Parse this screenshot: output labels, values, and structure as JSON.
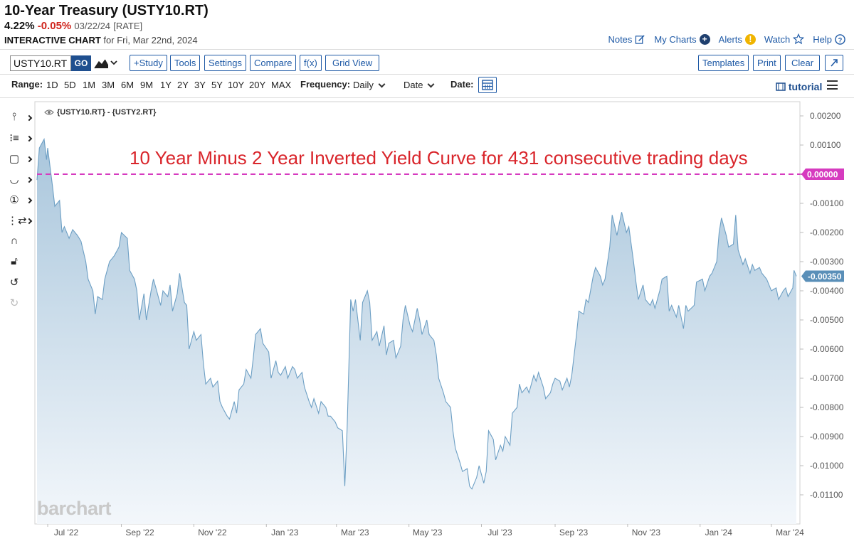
{
  "header": {
    "title": "10-Year Treasury (USTY10.RT)",
    "last": "4.22%",
    "change": "-0.05%",
    "date": "03/22/24",
    "tag": "[RATE]",
    "chart_label": "INTERACTIVE CHART",
    "for_text": "for Fri, Mar 22nd, 2024"
  },
  "top_links": {
    "notes": "Notes",
    "my_charts": "My Charts",
    "alerts": "Alerts",
    "watch": "Watch",
    "help": "Help"
  },
  "toolbar": {
    "symbol": "USTY10.RT",
    "go": "GO",
    "study": "+Study",
    "tools": "Tools",
    "settings": "Settings",
    "compare": "Compare",
    "fx": "f(x)",
    "grid_view": "Grid View",
    "templates": "Templates",
    "print": "Print",
    "clear": "Clear"
  },
  "range_bar": {
    "range_label": "Range:",
    "ranges": [
      "1D",
      "5D",
      "1M",
      "3M",
      "6M",
      "9M",
      "1Y",
      "2Y",
      "3Y",
      "5Y",
      "10Y",
      "20Y",
      "MAX"
    ],
    "frequency_label": "Frequency:",
    "frequency": "Daily",
    "axis_mode": "Date",
    "date_label": "Date:",
    "tutorial": "tutorial"
  },
  "colors": {
    "accent": "#1f5aa6",
    "line": "#6d9fc4",
    "fill_top": "#a9c6dc",
    "fill_bottom": "#f3f7fb",
    "zero_line": "#d63bbf",
    "annotation": "#d9252b",
    "last_badge": "#5a8fb8"
  },
  "chart_data": {
    "type": "area",
    "series": [
      {
        "name": "{USTY10.RT} - {USTY2.RT}",
        "points": [
          [
            "2022-06-22",
            -0.0002
          ],
          [
            "2022-06-24",
            0.0009
          ],
          [
            "2022-06-28",
            0.0012
          ],
          [
            "2022-06-30",
            0.0005
          ],
          [
            "2022-07-01",
            0.0009
          ],
          [
            "2022-07-05",
            -0.0004
          ],
          [
            "2022-07-07",
            -0.0011
          ],
          [
            "2022-07-11",
            -0.0009
          ],
          [
            "2022-07-13",
            -0.002
          ],
          [
            "2022-07-15",
            -0.0018
          ],
          [
            "2022-07-19",
            -0.0022
          ],
          [
            "2022-07-22",
            -0.0019
          ],
          [
            "2022-07-26",
            -0.0021
          ],
          [
            "2022-07-29",
            -0.0023
          ],
          [
            "2022-08-02",
            -0.003
          ],
          [
            "2022-08-04",
            -0.0036
          ],
          [
            "2022-08-08",
            -0.004
          ],
          [
            "2022-08-10",
            -0.0048
          ],
          [
            "2022-08-12",
            -0.0042
          ],
          [
            "2022-08-16",
            -0.0043
          ],
          [
            "2022-08-18",
            -0.0036
          ],
          [
            "2022-08-22",
            -0.003
          ],
          [
            "2022-08-26",
            -0.0028
          ],
          [
            "2022-08-30",
            -0.0025
          ],
          [
            "2022-09-01",
            -0.002
          ],
          [
            "2022-09-06",
            -0.0022
          ],
          [
            "2022-09-08",
            -0.0033
          ],
          [
            "2022-09-12",
            -0.0036
          ],
          [
            "2022-09-14",
            -0.004
          ],
          [
            "2022-09-16",
            -0.005
          ],
          [
            "2022-09-20",
            -0.0041
          ],
          [
            "2022-09-22",
            -0.005
          ],
          [
            "2022-09-26",
            -0.004
          ],
          [
            "2022-09-28",
            -0.0036
          ],
          [
            "2022-09-30",
            -0.0039
          ],
          [
            "2022-10-04",
            -0.0045
          ],
          [
            "2022-10-06",
            -0.004
          ],
          [
            "2022-10-10",
            -0.0042
          ],
          [
            "2022-10-12",
            -0.0038
          ],
          [
            "2022-10-14",
            -0.0047
          ],
          [
            "2022-10-18",
            -0.0041
          ],
          [
            "2022-10-20",
            -0.0034
          ],
          [
            "2022-10-24",
            -0.0044
          ],
          [
            "2022-10-26",
            -0.0045
          ],
          [
            "2022-10-28",
            -0.006
          ],
          [
            "2022-11-01",
            -0.0054
          ],
          [
            "2022-11-03",
            -0.0057
          ],
          [
            "2022-11-07",
            -0.0055
          ],
          [
            "2022-11-09",
            -0.0065
          ],
          [
            "2022-11-11",
            -0.0072
          ],
          [
            "2022-11-15",
            -0.007
          ],
          [
            "2022-11-17",
            -0.0073
          ],
          [
            "2022-11-21",
            -0.0071
          ],
          [
            "2022-11-23",
            -0.0078
          ],
          [
            "2022-11-25",
            -0.008
          ],
          [
            "2022-11-29",
            -0.0083
          ],
          [
            "2022-12-01",
            -0.0084
          ],
          [
            "2022-12-05",
            -0.0078
          ],
          [
            "2022-12-07",
            -0.0082
          ],
          [
            "2022-12-09",
            -0.0074
          ],
          [
            "2022-12-13",
            -0.0072
          ],
          [
            "2022-12-15",
            -0.0067
          ],
          [
            "2022-12-19",
            -0.007
          ],
          [
            "2022-12-21",
            -0.0063
          ],
          [
            "2022-12-23",
            -0.0055
          ],
          [
            "2022-12-27",
            -0.0053
          ],
          [
            "2022-12-29",
            -0.0058
          ],
          [
            "2023-01-03",
            -0.0061
          ],
          [
            "2023-01-05",
            -0.007
          ],
          [
            "2023-01-09",
            -0.0064
          ],
          [
            "2023-01-11",
            -0.0068
          ],
          [
            "2023-01-13",
            -0.0069
          ],
          [
            "2023-01-17",
            -0.0066
          ],
          [
            "2023-01-19",
            -0.007
          ],
          [
            "2023-01-23",
            -0.0066
          ],
          [
            "2023-01-25",
            -0.0067
          ],
          [
            "2023-01-27",
            -0.007
          ],
          [
            "2023-01-31",
            -0.0068
          ],
          [
            "2023-02-02",
            -0.0073
          ],
          [
            "2023-02-06",
            -0.0078
          ],
          [
            "2023-02-08",
            -0.008
          ],
          [
            "2023-02-10",
            -0.0077
          ],
          [
            "2023-02-14",
            -0.0082
          ],
          [
            "2023-02-16",
            -0.0078
          ],
          [
            "2023-02-20",
            -0.008
          ],
          [
            "2023-02-22",
            -0.0083
          ],
          [
            "2023-02-24",
            -0.0083
          ],
          [
            "2023-02-28",
            -0.0085
          ],
          [
            "2023-03-02",
            -0.0087
          ],
          [
            "2023-03-06",
            -0.0088
          ],
          [
            "2023-03-08",
            -0.0107
          ],
          [
            "2023-03-10",
            -0.0087
          ],
          [
            "2023-03-13",
            -0.0043
          ],
          [
            "2023-03-15",
            -0.0047
          ],
          [
            "2023-03-17",
            -0.0043
          ],
          [
            "2023-03-21",
            -0.0057
          ],
          [
            "2023-03-23",
            -0.0044
          ],
          [
            "2023-03-27",
            -0.004
          ],
          [
            "2023-03-29",
            -0.0044
          ],
          [
            "2023-03-31",
            -0.0057
          ],
          [
            "2023-04-04",
            -0.0054
          ],
          [
            "2023-04-06",
            -0.0059
          ],
          [
            "2023-04-10",
            -0.0052
          ],
          [
            "2023-04-12",
            -0.0062
          ],
          [
            "2023-04-14",
            -0.0058
          ],
          [
            "2023-04-18",
            -0.0057
          ],
          [
            "2023-04-20",
            -0.0063
          ],
          [
            "2023-04-24",
            -0.0059
          ],
          [
            "2023-04-26",
            -0.005
          ],
          [
            "2023-04-28",
            -0.0045
          ],
          [
            "2023-05-02",
            -0.0052
          ],
          [
            "2023-05-04",
            -0.0054
          ],
          [
            "2023-05-08",
            -0.0046
          ],
          [
            "2023-05-10",
            -0.005
          ],
          [
            "2023-05-12",
            -0.0055
          ],
          [
            "2023-05-16",
            -0.005
          ],
          [
            "2023-05-18",
            -0.0055
          ],
          [
            "2023-05-22",
            -0.0057
          ],
          [
            "2023-05-24",
            -0.0062
          ],
          [
            "2023-05-26",
            -0.007
          ],
          [
            "2023-05-30",
            -0.0075
          ],
          [
            "2023-06-01",
            -0.0078
          ],
          [
            "2023-06-05",
            -0.008
          ],
          [
            "2023-06-07",
            -0.0088
          ],
          [
            "2023-06-09",
            -0.0094
          ],
          [
            "2023-06-13",
            -0.0099
          ],
          [
            "2023-06-15",
            -0.0102
          ],
          [
            "2023-06-19",
            -0.0101
          ],
          [
            "2023-06-21",
            -0.0107
          ],
          [
            "2023-06-23",
            -0.0108
          ],
          [
            "2023-06-27",
            -0.0104
          ],
          [
            "2023-06-29",
            -0.01
          ],
          [
            "2023-07-03",
            -0.0106
          ],
          [
            "2023-07-05",
            -0.0102
          ],
          [
            "2023-07-07",
            -0.0088
          ],
          [
            "2023-07-11",
            -0.0091
          ],
          [
            "2023-07-13",
            -0.0098
          ],
          [
            "2023-07-17",
            -0.0093
          ],
          [
            "2023-07-19",
            -0.0095
          ],
          [
            "2023-07-21",
            -0.009
          ],
          [
            "2023-07-25",
            -0.0093
          ],
          [
            "2023-07-27",
            -0.0082
          ],
          [
            "2023-07-31",
            -0.008
          ],
          [
            "2023-08-02",
            -0.0072
          ],
          [
            "2023-08-04",
            -0.0075
          ],
          [
            "2023-08-08",
            -0.0073
          ],
          [
            "2023-08-10",
            -0.0075
          ],
          [
            "2023-08-14",
            -0.0069
          ],
          [
            "2023-08-16",
            -0.0071
          ],
          [
            "2023-08-18",
            -0.0068
          ],
          [
            "2023-08-22",
            -0.0073
          ],
          [
            "2023-08-24",
            -0.0077
          ],
          [
            "2023-08-28",
            -0.0075
          ],
          [
            "2023-08-30",
            -0.0072
          ],
          [
            "2023-09-01",
            -0.007
          ],
          [
            "2023-09-05",
            -0.0071
          ],
          [
            "2023-09-07",
            -0.0074
          ],
          [
            "2023-09-11",
            -0.007
          ],
          [
            "2023-09-13",
            -0.0073
          ],
          [
            "2023-09-15",
            -0.0069
          ],
          [
            "2023-09-19",
            -0.0055
          ],
          [
            "2023-09-21",
            -0.0047
          ],
          [
            "2023-09-25",
            -0.0048
          ],
          [
            "2023-09-27",
            -0.0043
          ],
          [
            "2023-09-29",
            -0.0044
          ],
          [
            "2023-10-03",
            -0.0035
          ],
          [
            "2023-10-05",
            -0.0032
          ],
          [
            "2023-10-09",
            -0.0035
          ],
          [
            "2023-10-11",
            -0.0038
          ],
          [
            "2023-10-13",
            -0.0036
          ],
          [
            "2023-10-17",
            -0.0025
          ],
          [
            "2023-10-19",
            -0.0014
          ],
          [
            "2023-10-23",
            -0.0021
          ],
          [
            "2023-10-25",
            -0.0017
          ],
          [
            "2023-10-27",
            -0.0013
          ],
          [
            "2023-10-31",
            -0.002
          ],
          [
            "2023-11-02",
            -0.0018
          ],
          [
            "2023-11-06",
            -0.003
          ],
          [
            "2023-11-08",
            -0.0037
          ],
          [
            "2023-11-10",
            -0.0043
          ],
          [
            "2023-11-14",
            -0.0038
          ],
          [
            "2023-11-16",
            -0.0043
          ],
          [
            "2023-11-20",
            -0.0045
          ],
          [
            "2023-11-22",
            -0.0043
          ],
          [
            "2023-11-24",
            -0.0046
          ],
          [
            "2023-11-28",
            -0.004
          ],
          [
            "2023-11-30",
            -0.0036
          ],
          [
            "2023-12-04",
            -0.0035
          ],
          [
            "2023-12-06",
            -0.0047
          ],
          [
            "2023-12-08",
            -0.0045
          ],
          [
            "2023-12-12",
            -0.0049
          ],
          [
            "2023-12-14",
            -0.0045
          ],
          [
            "2023-12-18",
            -0.0053
          ],
          [
            "2023-12-20",
            -0.0045
          ],
          [
            "2023-12-22",
            -0.0047
          ],
          [
            "2023-12-27",
            -0.0045
          ],
          [
            "2023-12-29",
            -0.0037
          ],
          [
            "2024-01-03",
            -0.0036
          ],
          [
            "2024-01-05",
            -0.004
          ],
          [
            "2024-01-09",
            -0.0035
          ],
          [
            "2024-01-11",
            -0.0034
          ],
          [
            "2024-01-15",
            -0.003
          ],
          [
            "2024-01-17",
            -0.002
          ],
          [
            "2024-01-19",
            -0.0015
          ],
          [
            "2024-01-23",
            -0.0021
          ],
          [
            "2024-01-25",
            -0.0025
          ],
          [
            "2024-01-29",
            -0.0024
          ],
          [
            "2024-01-31",
            -0.0014
          ],
          [
            "2024-02-02",
            -0.0026
          ],
          [
            "2024-02-06",
            -0.0031
          ],
          [
            "2024-02-08",
            -0.0029
          ],
          [
            "2024-02-12",
            -0.0034
          ],
          [
            "2024-02-14",
            -0.0031
          ],
          [
            "2024-02-16",
            -0.0033
          ],
          [
            "2024-02-20",
            -0.0032
          ],
          [
            "2024-02-22",
            -0.0034
          ],
          [
            "2024-02-26",
            -0.0036
          ],
          [
            "2024-02-28",
            -0.0038
          ],
          [
            "2024-03-01",
            -0.004
          ],
          [
            "2024-03-05",
            -0.0039
          ],
          [
            "2024-03-07",
            -0.0043
          ],
          [
            "2024-03-11",
            -0.004
          ],
          [
            "2024-03-13",
            -0.0039
          ],
          [
            "2024-03-15",
            -0.0042
          ],
          [
            "2024-03-19",
            -0.0039
          ],
          [
            "2024-03-20",
            -0.0033
          ],
          [
            "2024-03-22",
            -0.0035
          ]
        ]
      }
    ],
    "x_tick_labels": [
      "Jul '22",
      "Sep '22",
      "Nov '22",
      "Jan '23",
      "Mar '23",
      "May '23",
      "Jul '23",
      "Sep '23",
      "Nov '23",
      "Jan '24",
      "Mar '24"
    ],
    "y_tick_labels": [
      "0.00200",
      "0.00100",
      "0.00000",
      "-0.00100",
      "-0.00200",
      "-0.00300",
      "-0.00400",
      "-0.00500",
      "-0.00600",
      "-0.00700",
      "-0.00800",
      "-0.00900",
      "-0.01000",
      "-0.01100"
    ],
    "ylim": [
      -0.0118,
      0.0024
    ],
    "reference_line": {
      "value": 0.0,
      "label": "0.00000"
    },
    "last_value_label": "-0.00350",
    "annotation": "10 Year Minus 2 Year Inverted Yield Curve for 431 consecutive trading days",
    "watermark": "barchart",
    "grid": false
  }
}
